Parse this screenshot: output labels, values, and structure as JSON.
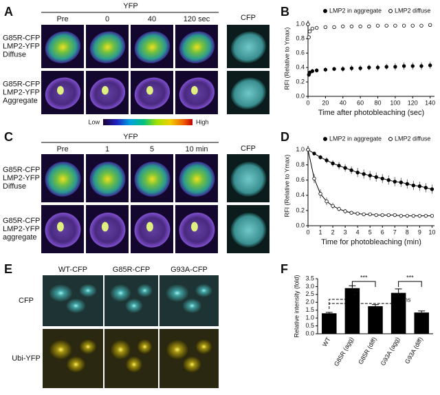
{
  "panel_a": {
    "label": "A",
    "header": "YFP",
    "columns": [
      "Pre",
      "0",
      "40",
      "120 sec"
    ],
    "cfp_header": "CFP",
    "rows": [
      [
        "G85R-CFP",
        "LMP2-YFP",
        "Diffuse"
      ],
      [
        "G85R-CFP",
        "LMP2-YFP",
        "Aggregate"
      ]
    ],
    "colorbar": {
      "low": "Low",
      "high": "High"
    }
  },
  "panel_c": {
    "label": "C",
    "header": "YFP",
    "columns": [
      "Pre",
      "1",
      "5",
      "10 min"
    ],
    "cfp_header": "CFP",
    "rows": [
      [
        "G85R-CFP",
        "LMP2-YFP",
        "Diffuse"
      ],
      [
        "G85R-CFP",
        "LMP2-YFP",
        "aggregate"
      ]
    ]
  },
  "panel_e": {
    "label": "E",
    "columns": [
      "WT-CFP",
      "G85R-CFP",
      "G93A-CFP"
    ],
    "rows": [
      "CFP",
      "Ubi-YFP"
    ]
  },
  "chart_data": [
    {
      "type": "line",
      "panel": "B",
      "connect": false,
      "xlabel": "Time after photobleaching (sec)",
      "ylabel": "RFI (Relative to Ymax)",
      "x": [
        0,
        1,
        2,
        5,
        10,
        20,
        30,
        40,
        50,
        60,
        70,
        80,
        90,
        100,
        110,
        120,
        130,
        140
      ],
      "xlim": [
        0,
        145
      ],
      "xticks": [
        0,
        20,
        40,
        60,
        80,
        100,
        120,
        140
      ],
      "ylim": [
        0,
        1.05
      ],
      "yticks": [
        {
          "value": 0,
          "label": "0.0"
        },
        0.2,
        0.4,
        0.6,
        0.8,
        {
          "value": 1,
          "label": "1.0"
        }
      ],
      "series": [
        {
          "name": "LMP2 in aggregate",
          "color": "#000",
          "marker": "filled",
          "values": [
            1.0,
            0.3,
            0.33,
            0.35,
            0.36,
            0.37,
            0.38,
            0.38,
            0.39,
            0.39,
            0.4,
            0.4,
            0.41,
            0.41,
            0.42,
            0.42,
            0.42,
            0.43
          ],
          "errors": [
            0.02,
            0.03,
            0.03,
            0.03,
            0.03,
            0.03,
            0.03,
            0.04,
            0.04,
            0.04,
            0.04,
            0.04,
            0.04,
            0.05,
            0.05,
            0.05,
            0.05,
            0.05
          ]
        },
        {
          "name": "LMP2 diffuse",
          "color": "#000",
          "marker": "open",
          "values": [
            1.0,
            0.82,
            0.9,
            0.94,
            0.95,
            0.96,
            0.96,
            0.97,
            0.97,
            0.97,
            0.97,
            0.98,
            0.98,
            0.98,
            0.98,
            0.98,
            0.98,
            0.99
          ],
          "errors": [
            0.01,
            0.02,
            0.01,
            0.01,
            0.01,
            0.01,
            0.01,
            0.01,
            0.01,
            0.01,
            0.01,
            0.01,
            0.01,
            0.01,
            0.01,
            0.01,
            0.01,
            0.01
          ]
        }
      ]
    },
    {
      "type": "line",
      "panel": "D",
      "connect": true,
      "xlabel": "Time for photobleaching (min)",
      "ylabel": "RFI (Relative to Ymax)",
      "x": [
        0,
        0.5,
        1,
        1.5,
        2,
        2.5,
        3,
        3.5,
        4,
        4.5,
        5,
        5.5,
        6,
        6.5,
        7,
        7.5,
        8,
        8.5,
        9,
        9.5,
        10
      ],
      "xlim": [
        0,
        10.2
      ],
      "xticks": [
        0,
        1,
        2,
        3,
        4,
        5,
        6,
        7,
        8,
        9,
        10
      ],
      "ylim": [
        0,
        1.05
      ],
      "yticks": [
        {
          "value": 0,
          "label": "0.0"
        },
        0.2,
        0.4,
        0.6,
        0.8,
        {
          "value": 1,
          "label": "1.0"
        }
      ],
      "series": [
        {
          "name": "LMP2 in aggregate",
          "color": "#000",
          "marker": "filled",
          "values": [
            1.0,
            0.95,
            0.9,
            0.86,
            0.82,
            0.79,
            0.76,
            0.73,
            0.7,
            0.68,
            0.66,
            0.64,
            0.62,
            0.6,
            0.58,
            0.57,
            0.55,
            0.53,
            0.52,
            0.5,
            0.48
          ],
          "errors": [
            0.01,
            0.02,
            0.03,
            0.04,
            0.04,
            0.05,
            0.05,
            0.05,
            0.06,
            0.06,
            0.06,
            0.06,
            0.06,
            0.06,
            0.06,
            0.06,
            0.06,
            0.06,
            0.06,
            0.06,
            0.06
          ]
        },
        {
          "name": "LMP2 diffuse",
          "color": "#000",
          "marker": "open",
          "values": [
            1.0,
            0.62,
            0.42,
            0.32,
            0.26,
            0.22,
            0.19,
            0.17,
            0.16,
            0.15,
            0.15,
            0.14,
            0.14,
            0.14,
            0.14,
            0.13,
            0.13,
            0.13,
            0.13,
            0.13,
            0.13
          ],
          "errors": [
            0.01,
            0.06,
            0.06,
            0.05,
            0.04,
            0.03,
            0.03,
            0.02,
            0.02,
            0.02,
            0.02,
            0.02,
            0.01,
            0.01,
            0.01,
            0.01,
            0.01,
            0.01,
            0.01,
            0.01,
            0.01
          ]
        }
      ]
    },
    {
      "type": "bar",
      "panel": "F",
      "ylabel": "Relative intensity (fold)",
      "color": "#000",
      "categories": [
        "WT",
        "G85R (agg)",
        "G85R (diff)",
        "G93A (agg)",
        "G93A (diff)"
      ],
      "values": [
        1.3,
        2.9,
        1.75,
        2.6,
        1.35
      ],
      "errors": [
        0.06,
        0.15,
        0.1,
        0.25,
        0.1
      ],
      "ylim": [
        0,
        3.5
      ],
      "yticks": [
        {
          "value": 0,
          "label": "0.0"
        },
        0.5,
        {
          "value": 1,
          "label": "1.0"
        },
        1.5,
        {
          "value": 2,
          "label": "2.0"
        },
        2.5,
        {
          "value": 3,
          "label": "3.0"
        },
        3.5
      ],
      "annotations": [
        "***",
        "*",
        "ns",
        "***"
      ]
    }
  ]
}
